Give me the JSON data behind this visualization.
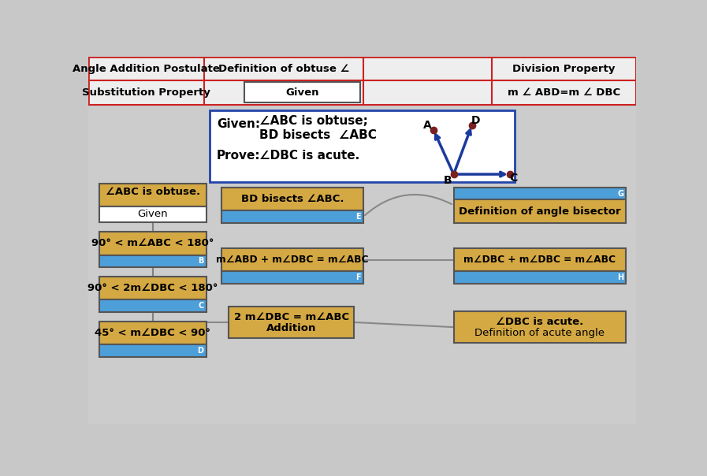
{
  "bg_color": "#c8c8c8",
  "top_bg": "#eeeeee",
  "top_border": "#cc2222",
  "sandy": "#d4a843",
  "blue_fill": "#4d9fda",
  "white_fill": "#ffffff",
  "dark_blue_border": "#2244aa",
  "box_border": "#666666",
  "top_row1": [
    "Angle Addition Postulate",
    "Definition of obtuse ∠",
    "Division Property"
  ],
  "top_row2": [
    "Substitution Property",
    "Given",
    "m ∠ ABD=m ∠ DBC"
  ],
  "given_line1": "∠ABC is obtuse;",
  "given_line2": "BD bisects  ∠ABC",
  "prove_text": "∠DBC is acute.",
  "box_A_text1": "∠ABC is obtuse.",
  "box_A_text2": "Given",
  "box_B_text1": "90° < m∠ABC < 180°",
  "box_B_label": "B",
  "box_C_text1": "90° < 2m∠DBC < 180°",
  "box_C_label": "C",
  "box_D_text1": "45° < m∠DBC < 90°",
  "box_D_label": "D",
  "box_E_text": "BD bisects ∠ABC.",
  "box_E_label": "E",
  "box_F_text": "m∠ABD + m∠DBC = m∠ABC",
  "box_F_label": "F",
  "box_G_text": "Definition of angle bisector",
  "box_G_label": "G",
  "box_H_text": "m∠DBC + m∠DBC = m∠ABC",
  "box_H_label": "H",
  "box_I_text1": "2 m∠DBC = m∠ABC",
  "box_I_text2": "Addition",
  "box_J_text1": "∠DBC is acute.",
  "box_J_text2": "Definition of acute angle"
}
